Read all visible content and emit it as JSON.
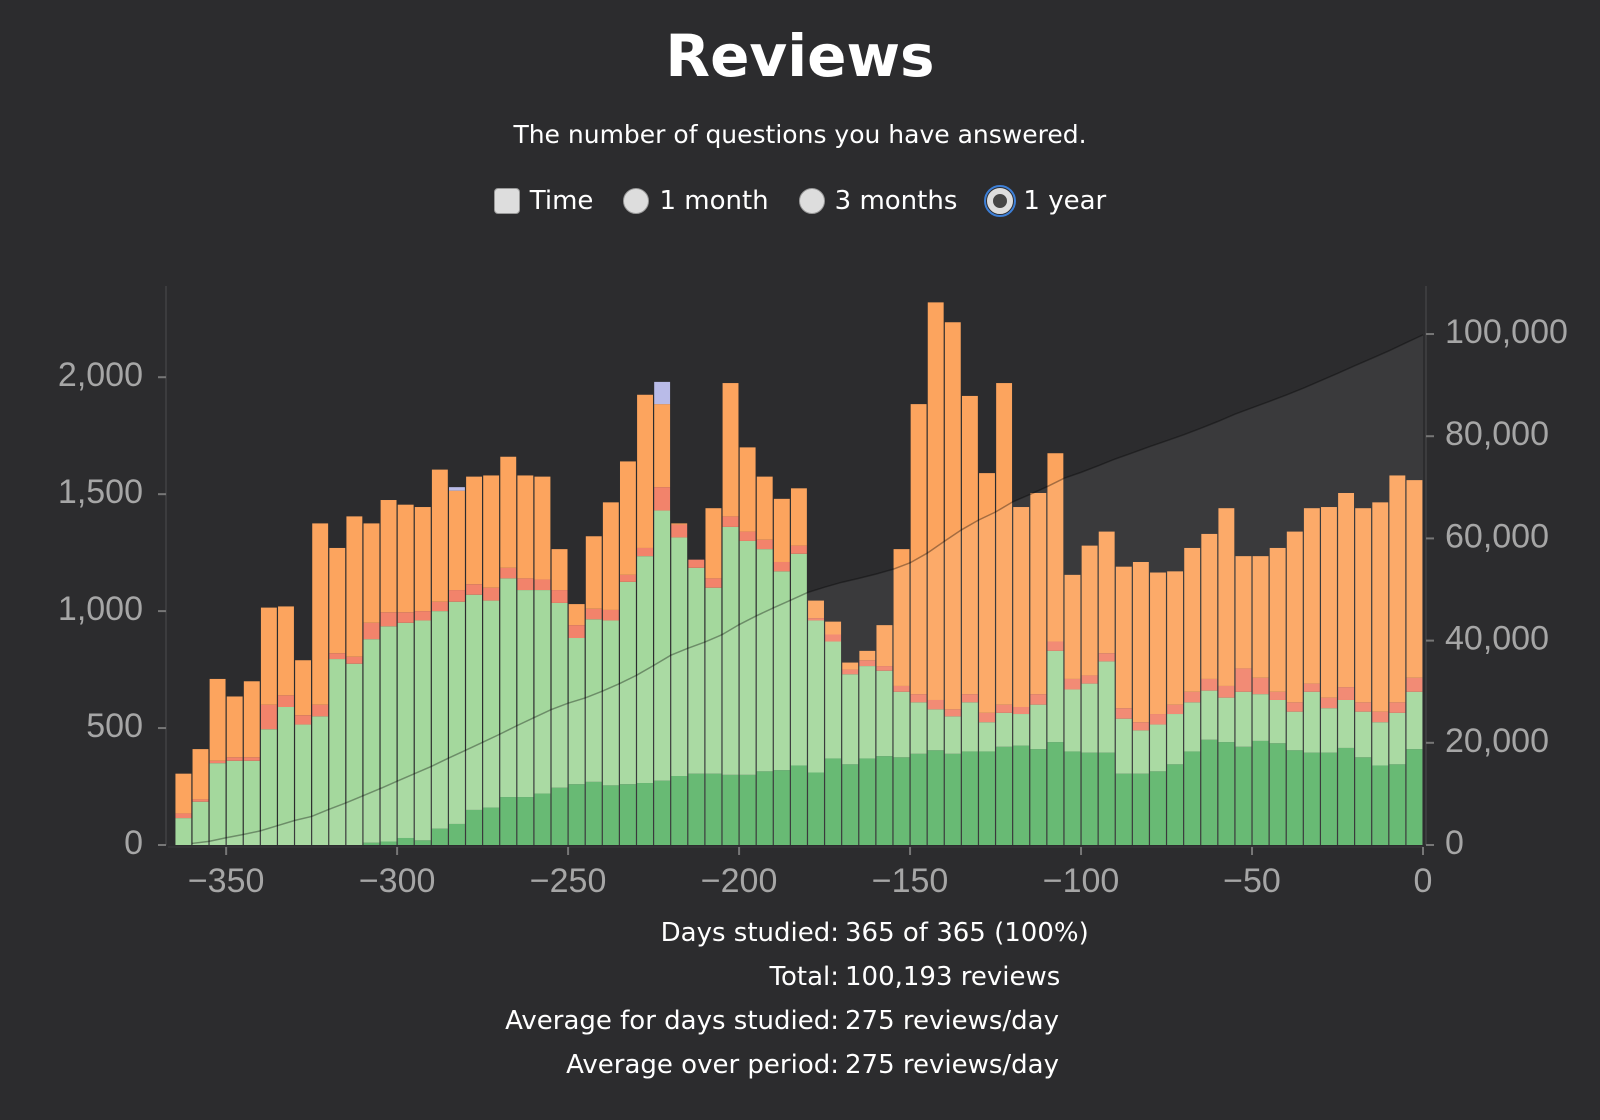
{
  "chart_data": {
    "type": "stacked-histogram",
    "title": "Reviews",
    "subtitle": "The number of questions you have answered.",
    "bins": [
      -365,
      -360,
      -355,
      -350,
      -345,
      -340,
      -335,
      -330,
      -325,
      -320,
      -315,
      -310,
      -305,
      -300,
      -295,
      -290,
      -285,
      -280,
      -275,
      -270,
      -265,
      -260,
      -255,
      -250,
      -245,
      -240,
      -235,
      -230,
      -225,
      -220,
      -215,
      -210,
      -205,
      -200,
      -195,
      -190,
      -185,
      -180,
      -175,
      -170,
      -165,
      -160,
      -155,
      -150,
      -145,
      -140,
      -135,
      -130,
      -125,
      -120,
      -115,
      -110,
      -105,
      -100,
      -95,
      -90,
      -85,
      -80,
      -75,
      -70,
      -65,
      -60,
      -55,
      -50,
      -45,
      -40,
      -35,
      -30,
      -25,
      -20,
      -15,
      -10,
      -5,
      0
    ],
    "series": [
      {
        "color": "#5db56a",
        "values": [
          0,
          0,
          0,
          0,
          0,
          0,
          0,
          0,
          0,
          0,
          0,
          10,
          15,
          30,
          20,
          70,
          90,
          150,
          160,
          205,
          205,
          220,
          245,
          260,
          270,
          255,
          260,
          265,
          275,
          295,
          305,
          305,
          300,
          300,
          315,
          320,
          340,
          310,
          370,
          345,
          370,
          380,
          375,
          390,
          405,
          390,
          400,
          400,
          420,
          425,
          410,
          440,
          400,
          395,
          395,
          305,
          305,
          315,
          345,
          400,
          450,
          440,
          420,
          445,
          435,
          405,
          395,
          395,
          415,
          375,
          340,
          345,
          410
        ]
      },
      {
        "color": "#a4d89d",
        "values": [
          115,
          185,
          350,
          360,
          360,
          495,
          590,
          515,
          550,
          795,
          775,
          870,
          920,
          920,
          940,
          930,
          950,
          920,
          885,
          935,
          885,
          870,
          790,
          625,
          695,
          705,
          865,
          970,
          1155,
          1020,
          880,
          795,
          1060,
          1000,
          950,
          850,
          905,
          650,
          500,
          385,
          395,
          365,
          280,
          220,
          175,
          160,
          210,
          125,
          145,
          135,
          190,
          390,
          265,
          295,
          390,
          235,
          185,
          200,
          215,
          210,
          210,
          190,
          235,
          200,
          185,
          165,
          260,
          190,
          205,
          195,
          185,
          220,
          245
        ]
      },
      {
        "color": "#f2836b",
        "values": [
          20,
          10,
          10,
          15,
          15,
          105,
          50,
          40,
          50,
          25,
          30,
          70,
          60,
          45,
          40,
          40,
          50,
          45,
          55,
          45,
          50,
          45,
          55,
          55,
          45,
          45,
          30,
          35,
          100,
          55,
          35,
          40,
          45,
          40,
          40,
          40,
          35,
          10,
          30,
          20,
          25,
          20,
          25,
          35,
          40,
          30,
          35,
          40,
          35,
          30,
          45,
          40,
          45,
          35,
          35,
          45,
          35,
          45,
          40,
          45,
          50,
          50,
          100,
          70,
          35,
          40,
          35,
          45,
          55,
          40,
          45,
          45,
          60
        ]
      },
      {
        "color": "#fca45e",
        "values": [
          170,
          215,
          350,
          260,
          325,
          415,
          380,
          235,
          775,
          450,
          600,
          425,
          480,
          460,
          445,
          565,
          425,
          460,
          480,
          475,
          440,
          440,
          175,
          90,
          310,
          460,
          485,
          655,
          355,
          5,
          0,
          300,
          570,
          360,
          270,
          270,
          245,
          75,
          55,
          30,
          40,
          175,
          585,
          1240,
          1700,
          1655,
          1275,
          1025,
          1375,
          855,
          860,
          805,
          445,
          555,
          520,
          605,
          685,
          605,
          570,
          615,
          620,
          760,
          480,
          520,
          615,
          730,
          750,
          815,
          830,
          830,
          895,
          970,
          845
        ]
      },
      {
        "color": "#b9bbe8",
        "values": [
          0,
          0,
          0,
          0,
          0,
          0,
          0,
          0,
          0,
          0,
          0,
          0,
          0,
          0,
          0,
          0,
          15,
          0,
          0,
          0,
          0,
          0,
          0,
          0,
          0,
          0,
          0,
          0,
          95,
          0,
          0,
          0,
          0,
          0,
          0,
          0,
          0,
          0,
          0,
          0,
          0,
          0,
          0,
          0,
          0,
          0,
          0,
          0,
          0,
          0,
          0,
          0,
          0,
          0,
          0,
          0,
          0,
          0,
          0,
          0,
          0,
          0,
          0,
          0,
          0,
          0,
          0,
          0,
          0,
          0,
          0,
          0,
          0
        ]
      }
    ],
    "cumulative": {
      "axis": "y2",
      "color": "#ffffff",
      "values": [
        305,
        715,
        1425,
        2060,
        2760,
        3775,
        4795,
        5585,
        6960,
        8230,
        9635,
        11010,
        12485,
        13940,
        15385,
        16990,
        18520,
        20095,
        21675,
        23335,
        24915,
        26490,
        27755,
        28785,
        30105,
        31570,
        33210,
        35135,
        37115,
        38490,
        39710,
        41150,
        43125,
        44825,
        46400,
        47880,
        49405,
        50450,
        51405,
        52185,
        53015,
        53955,
        55220,
        57105,
        59425,
        61660,
        63580,
        65170,
        67145,
        68590,
        70095,
        71770,
        72925,
        74205,
        75545,
        76735,
        77945,
        79110,
        80280,
        81550,
        82880,
        84320,
        85555,
        86790,
        88060,
        89400,
        90840,
        92285,
        93790,
        95230,
        96695,
        98275,
        99835
      ]
    },
    "xlim": [
      -367,
      0
    ],
    "xticks": [
      {
        "value": -350,
        "label": "−350"
      },
      {
        "value": -300,
        "label": "−300"
      },
      {
        "value": -250,
        "label": "−250"
      },
      {
        "value": -200,
        "label": "−200"
      },
      {
        "value": -150,
        "label": "−150"
      },
      {
        "value": -100,
        "label": "−100"
      },
      {
        "value": -50,
        "label": "−50"
      },
      0
    ],
    "ylim": [
      0,
      2390
    ],
    "yticks": [
      0,
      500,
      {
        "value": 1000,
        "label": "1,000"
      },
      {
        "value": 1500,
        "label": "1,500"
      },
      {
        "value": 2000,
        "label": "2,000"
      }
    ],
    "y2lim": [
      0,
      109400
    ],
    "y2ticks": [
      0,
      {
        "value": 20000,
        "label": "20,000"
      },
      {
        "value": 40000,
        "label": "40,000"
      },
      {
        "value": 60000,
        "label": "60,000"
      },
      {
        "value": 80000,
        "label": "80,000"
      },
      {
        "value": 100000,
        "label": "100,000"
      }
    ]
  },
  "controls": {
    "checkbox": "Time",
    "radios": [
      "1 month",
      "3 months",
      "1 year"
    ],
    "selected": 2
  },
  "stats": [
    [
      "Days studied:",
      "365 of 365 (100%)"
    ],
    [
      "Total:",
      "100,193 reviews"
    ],
    [
      "Average for days studied:",
      "275 reviews/day"
    ],
    [
      "Average over period:",
      "275 reviews/day"
    ]
  ]
}
